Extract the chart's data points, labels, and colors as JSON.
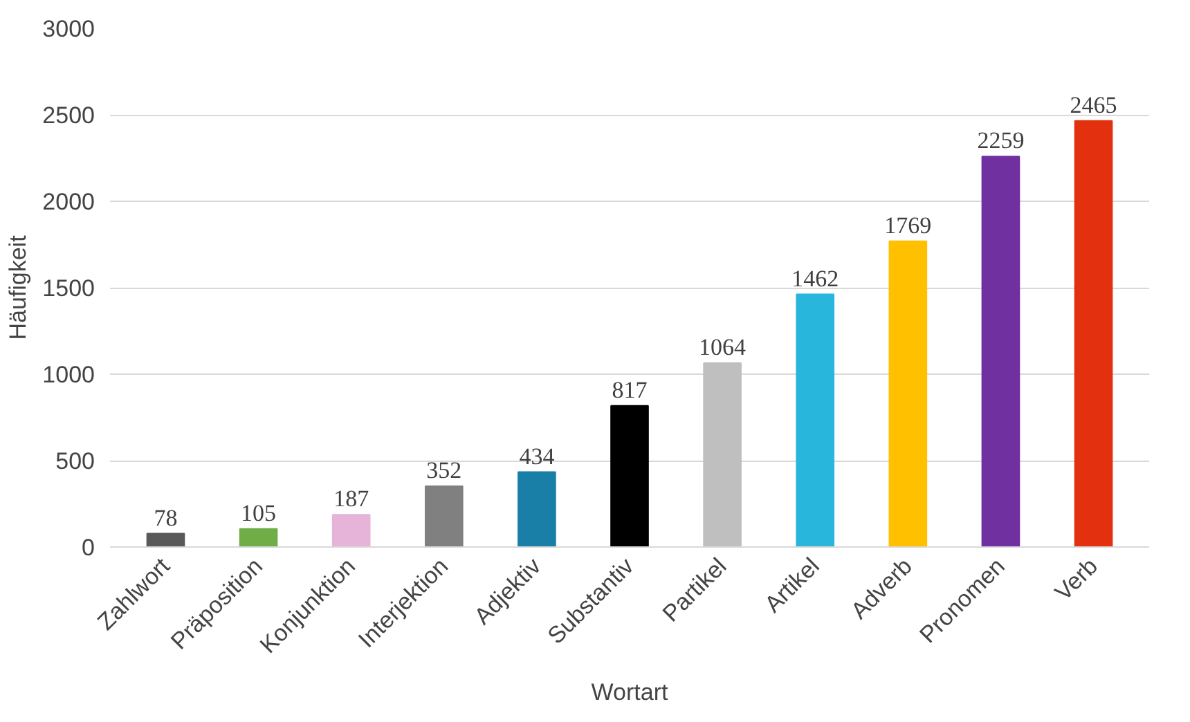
{
  "chart_data": {
    "type": "bar",
    "xlabel": "Wortart",
    "ylabel": "Häufigkeit",
    "categories": [
      "Zahlwort",
      "Präposition",
      "Konjunktion",
      "Interjektion",
      "Adjektiv",
      "Substantiv",
      "Partikel",
      "Artikel",
      "Adverb",
      "Pronomen",
      "Verb"
    ],
    "values": [
      78,
      105,
      187,
      352,
      434,
      817,
      1064,
      1462,
      1769,
      2259,
      2465
    ],
    "colors": [
      "#595959",
      "#70ad47",
      "#e6b3d9",
      "#808080",
      "#1a7fa6",
      "#000000",
      "#bfbfbf",
      "#29b6dc",
      "#ffc000",
      "#7030a0",
      "#e3300e"
    ],
    "ylim": [
      0,
      3000
    ],
    "yticks": [
      0,
      500,
      1000,
      1500,
      2000,
      2500,
      3000
    ],
    "grid": "y",
    "data_labels": true
  }
}
